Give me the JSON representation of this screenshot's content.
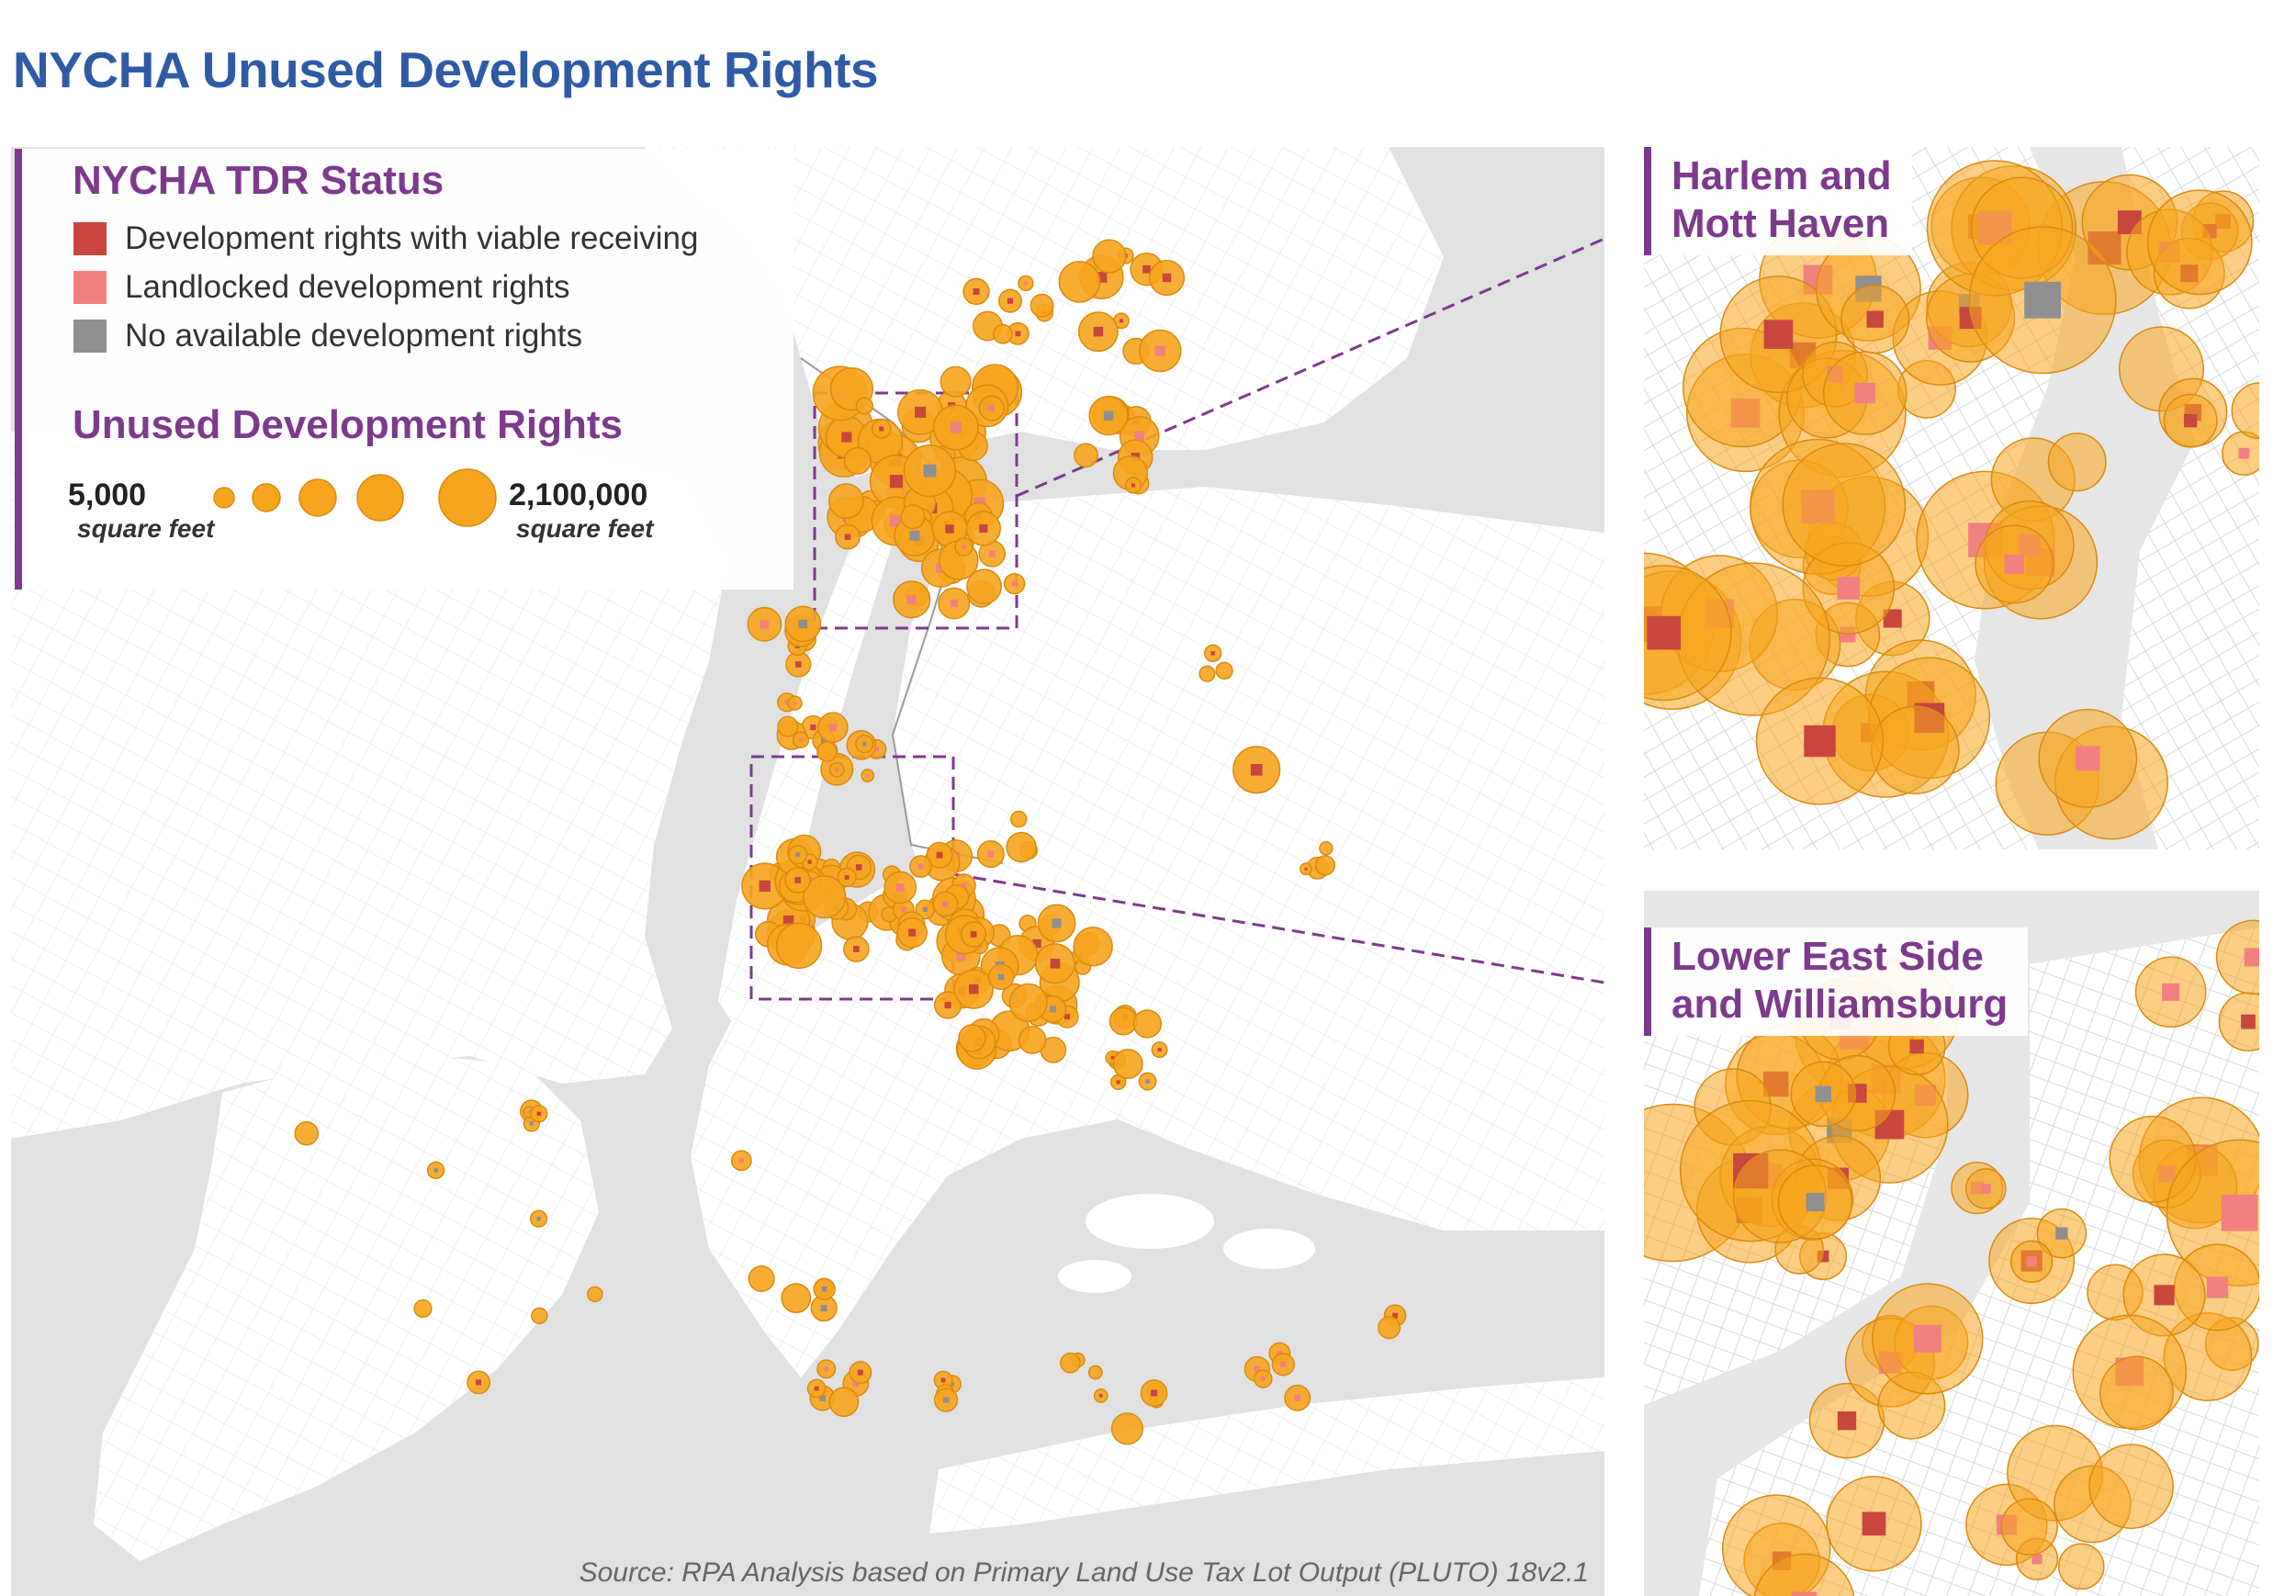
{
  "title": "NYCHA Unused Development Rights",
  "legend": {
    "status_title": "NYCHA TDR Status",
    "status_items": [
      {
        "label": "Development rights with viable receiving",
        "color": "#c8463e"
      },
      {
        "label": "Landlocked development rights",
        "color": "#f28080"
      },
      {
        "label": "No available development rights",
        "color": "#8f8f8f"
      }
    ],
    "size_title": "Unused Development Rights",
    "size_min_value": "5,000",
    "size_min_unit": "square feet",
    "size_max_value": "2,100,000",
    "size_max_unit": "square feet",
    "bubble_color": "#f7a51f"
  },
  "insets": [
    {
      "label_line1": "Harlem and",
      "label_line2": "Mott Haven"
    },
    {
      "label_line1": "Lower East Side",
      "label_line2": "and Williamsburg"
    }
  ],
  "source": "Source: RPA Analysis based on Primary Land Use Tax Lot Output (PLUTO) 18v2.1",
  "colors": {
    "accent": "#7d3a8d",
    "title": "#2f5aa6",
    "water": "#e1e1e1",
    "land": "#ffffff"
  }
}
